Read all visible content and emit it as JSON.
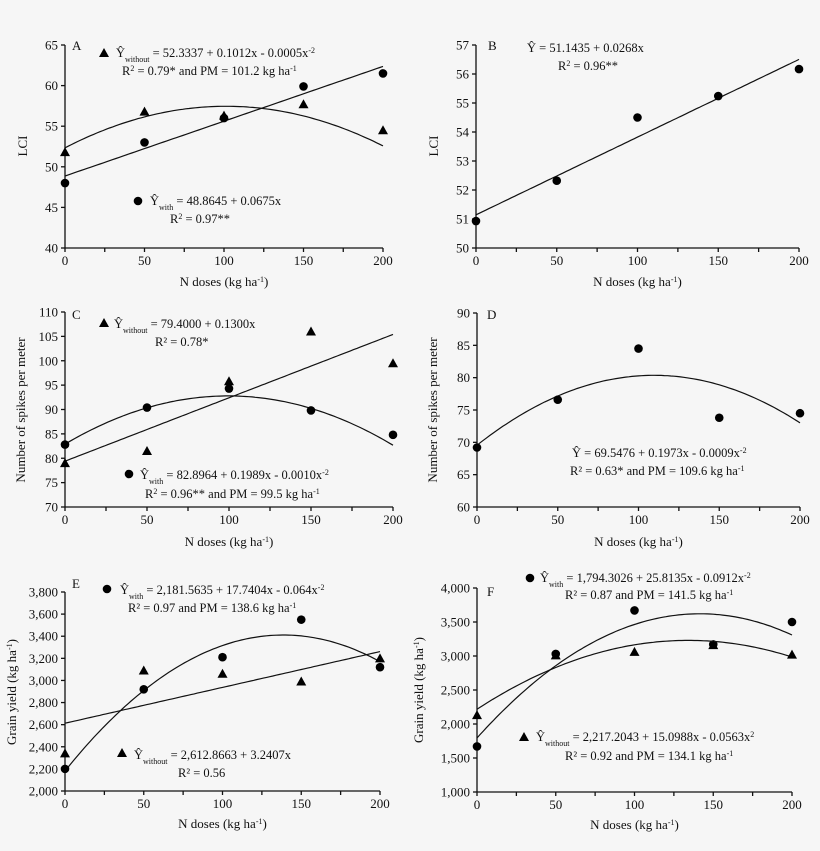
{
  "chart_data": [
    {
      "panel": "A",
      "type": "scatter",
      "ylabel": "LCI",
      "xlabel": [
        "N doses (kg ha",
        "-1",
        ")"
      ],
      "xlim": [
        0,
        200
      ],
      "ylim": [
        40,
        65
      ],
      "yticks": [
        40,
        45,
        50,
        55,
        60,
        65
      ],
      "xticks": [
        0,
        50,
        100,
        150,
        200
      ],
      "x": [
        0,
        50,
        100,
        150,
        200
      ],
      "series": [
        {
          "marker": "triangle",
          "values": [
            51.8,
            56.8,
            56.3,
            57.7,
            54.5
          ],
          "fit": [
            52.3337,
            0.1012,
            -0.0005
          ],
          "annotation": [
            [
              [
                "Ŷ",
                ""
              ],
              [
                "without",
                "sub"
              ],
              [
                " = 52.3337 + 0.1012x - 0.0005x",
                ""
              ],
              [
                "-2",
                "sup"
              ]
            ],
            [
              [
                "R",
                ""
              ],
              [
                "2",
                "sup"
              ],
              [
                " = 0.79* and PM = 101.2 kg ha",
                ""
              ],
              [
                "-1",
                "sup"
              ]
            ]
          ]
        },
        {
          "marker": "circle",
          "values": [
            48.0,
            53.0,
            56.0,
            59.9,
            61.5
          ],
          "fit": [
            48.8645,
            0.0675,
            0
          ],
          "annotation": [
            [
              [
                "Ŷ",
                ""
              ],
              [
                "with",
                "sub"
              ],
              [
                " = 48.8645 + 0.0675x",
                ""
              ]
            ],
            [
              [
                "R",
                ""
              ],
              [
                "2",
                "sup"
              ],
              [
                " = 0.97**",
                ""
              ]
            ]
          ]
        }
      ]
    },
    {
      "panel": "B",
      "type": "scatter",
      "ylabel": "LCI",
      "xlabel": [
        "N doses (kg ha",
        "-1",
        ")"
      ],
      "xlim": [
        0,
        200
      ],
      "ylim": [
        50,
        57
      ],
      "yticks": [
        50,
        51,
        52,
        53,
        54,
        55,
        56,
        57
      ],
      "xticks": [
        0,
        50,
        100,
        150,
        200
      ],
      "x": [
        0,
        50,
        100,
        150,
        200
      ],
      "series": [
        {
          "marker": "circle",
          "values": [
            50.93,
            52.32,
            54.5,
            55.24,
            56.17
          ],
          "fit": [
            51.1435,
            0.0268,
            0
          ],
          "annotation": [
            [
              [
                "Ŷ = 51.1435 + 0.0268x",
                ""
              ]
            ],
            [
              [
                "R",
                ""
              ],
              [
                "2",
                "sup"
              ],
              [
                " = 0.96**",
                ""
              ]
            ]
          ]
        }
      ]
    },
    {
      "panel": "C",
      "type": "scatter",
      "ylabel": "Number of spikes per meter",
      "xlabel": [
        "N doses (kg ha",
        "-1",
        ")"
      ],
      "xlim": [
        0,
        200
      ],
      "ylim": [
        70,
        110
      ],
      "yticks": [
        70,
        75,
        80,
        85,
        90,
        95,
        100,
        105,
        110
      ],
      "xticks": [
        0,
        50,
        100,
        150,
        200
      ],
      "x": [
        0,
        50,
        100,
        150,
        200
      ],
      "series": [
        {
          "marker": "triangle",
          "values": [
            79.0,
            81.5,
            95.8,
            106.0,
            99.5
          ],
          "fit": [
            79.4,
            0.13,
            0
          ],
          "annotation": [
            [
              [
                "Ŷ",
                ""
              ],
              [
                "without",
                "sub"
              ],
              [
                " = 79.4000 + 0.1300x",
                ""
              ]
            ],
            [
              [
                "R² = 0.78*",
                ""
              ]
            ]
          ]
        },
        {
          "marker": "circle",
          "values": [
            82.8,
            90.4,
            94.3,
            89.8,
            84.8
          ],
          "fit": [
            82.8964,
            0.1989,
            -0.001
          ],
          "annotation": [
            [
              [
                "Ŷ",
                ""
              ],
              [
                "with",
                "sub"
              ],
              [
                " = 82.8964 + 0.1989x - 0.0010x",
                ""
              ],
              [
                "-2",
                "sup"
              ]
            ],
            [
              [
                "R",
                ""
              ],
              [
                "2",
                "sup"
              ],
              [
                " = 0.96** and PM = 99.5 kg ha",
                ""
              ],
              [
                "-1",
                "sup"
              ]
            ]
          ]
        }
      ]
    },
    {
      "panel": "D",
      "type": "scatter",
      "ylabel": "Number of spikes per meter",
      "xlabel": [
        "N doses (kg ha",
        "-1",
        ")"
      ],
      "xlim": [
        0,
        200
      ],
      "ylim": [
        60,
        90
      ],
      "yticks": [
        60,
        65,
        70,
        75,
        80,
        85,
        90
      ],
      "xticks": [
        0,
        50,
        100,
        150,
        200
      ],
      "x": [
        0,
        50,
        100,
        150,
        200
      ],
      "series": [
        {
          "marker": "circle",
          "values": [
            69.2,
            76.6,
            84.5,
            73.8,
            74.5
          ],
          "fit": [
            69.5476,
            0.1973,
            -0.0009
          ],
          "annotation": [
            [
              [
                "Ŷ = 69.5476 + 0.1973x - 0.0009x",
                ""
              ],
              [
                "-2",
                "sup"
              ]
            ],
            [
              [
                "R² = 0.63* and PM = 109.6 kg ha",
                ""
              ],
              [
                "-1",
                "sup"
              ]
            ]
          ]
        }
      ]
    },
    {
      "panel": "E",
      "type": "scatter",
      "ylabel": [
        "Grain yield (kg ha",
        "-1",
        ")"
      ],
      "xlabel": [
        "N doses (kg ha",
        "-1",
        ")"
      ],
      "xlim": [
        0,
        200
      ],
      "ylim": [
        2000,
        3800
      ],
      "yticks": [
        2000,
        2200,
        2400,
        2600,
        2800,
        3000,
        3200,
        3400,
        3600,
        3800
      ],
      "xticks": [
        0,
        50,
        100,
        150,
        200
      ],
      "ytick_labels": [
        "2,000",
        "2,200",
        "2,400",
        "2,600",
        "2,800",
        "3,000",
        "3,200",
        "3,400",
        "3,600",
        "3,800"
      ],
      "x": [
        0,
        50,
        100,
        150,
        200
      ],
      "series": [
        {
          "marker": "circle",
          "values": [
            2200,
            2920,
            3210,
            3550,
            3120
          ],
          "fit": [
            2181.5635,
            17.7404,
            -0.064
          ],
          "annotation": [
            [
              [
                "Ŷ",
                ""
              ],
              [
                "with",
                "sub"
              ],
              [
                " = 2,181.5635 + 17.7404x - 0.064x",
                ""
              ],
              [
                "-2",
                "sup"
              ]
            ],
            [
              [
                "R² = 0.97 and PM = 138.6 kg ha",
                ""
              ],
              [
                "-1",
                "sup"
              ]
            ]
          ]
        },
        {
          "marker": "triangle",
          "values": [
            2340,
            3090,
            3060,
            2990,
            3200
          ],
          "fit": [
            2612.8663,
            3.2407,
            0
          ],
          "annotation": [
            [
              [
                "Ŷ",
                ""
              ],
              [
                "without",
                "sub"
              ],
              [
                " = 2,612.8663 + 3.2407x",
                ""
              ]
            ],
            [
              [
                "R² = 0.56",
                ""
              ]
            ]
          ]
        }
      ]
    },
    {
      "panel": "F",
      "type": "scatter",
      "ylabel": [
        "Grain yield (kg ha",
        "-1",
        ")"
      ],
      "xlabel": [
        "N doses (kg ha",
        "-1",
        ")"
      ],
      "xlim": [
        0,
        200
      ],
      "ylim": [
        1000,
        4000
      ],
      "yticks": [
        1000,
        1500,
        2000,
        2500,
        3000,
        3500,
        4000
      ],
      "xticks": [
        0,
        50,
        100,
        150,
        200
      ],
      "ytick_labels": [
        "1,000",
        "1,500",
        "2,000",
        "2,500",
        "3,000",
        "3,500",
        "4,000"
      ],
      "x": [
        0,
        50,
        100,
        150,
        200
      ],
      "series": [
        {
          "marker": "circle",
          "values": [
            1670,
            3030,
            3670,
            3170,
            3500
          ],
          "fit": [
            1794.3026,
            25.8135,
            -0.0912
          ],
          "annotation": [
            [
              [
                "Ŷ",
                ""
              ],
              [
                "with",
                "sub"
              ],
              [
                " = 1,794.3026 + 25.8135x - 0.0912x",
                ""
              ],
              [
                "-2",
                "sup"
              ]
            ],
            [
              [
                "R² = 0.87 and PM = 141.5 kg ha",
                ""
              ],
              [
                "-1",
                "sup"
              ]
            ]
          ]
        },
        {
          "marker": "triangle",
          "values": [
            2130,
            3010,
            3060,
            3160,
            3020
          ],
          "fit": [
            2217.2043,
            15.0988,
            -0.0563
          ],
          "annotation": [
            [
              [
                "Ŷ",
                ""
              ],
              [
                "without",
                "sub"
              ],
              [
                " = 2,217.2043 + 15.0988x - 0.0563x",
                ""
              ],
              [
                "2",
                "sup"
              ]
            ],
            [
              [
                "R² = 0.92 and PM = 134.1 kg ha",
                ""
              ],
              [
                "-1",
                "sup"
              ]
            ]
          ]
        }
      ]
    }
  ]
}
